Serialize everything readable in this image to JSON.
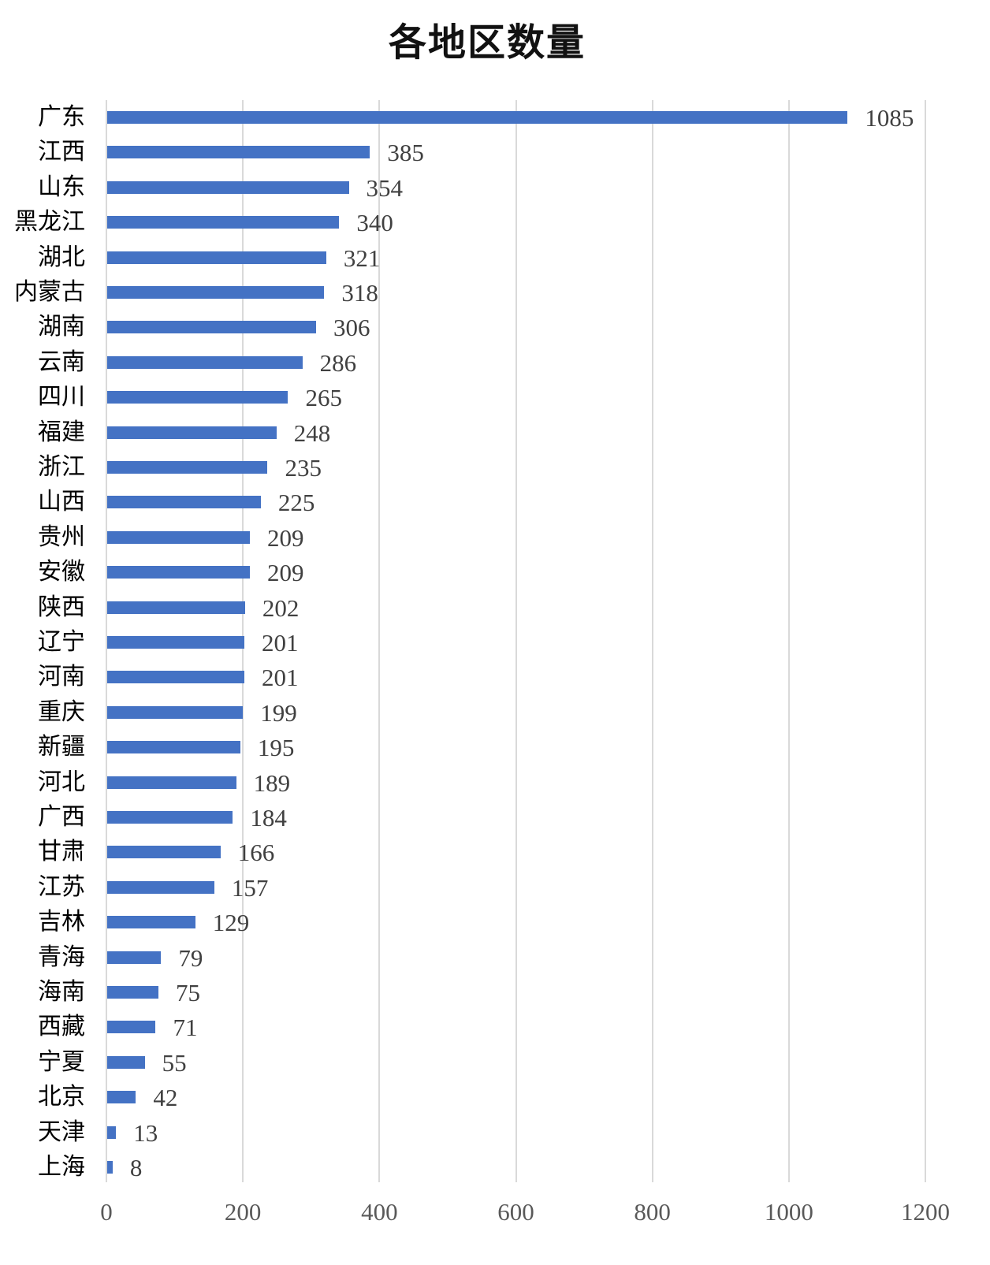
{
  "title": "各地区数量",
  "chart_data": {
    "type": "bar",
    "orientation": "horizontal",
    "title": "各地区数量",
    "xlabel": "",
    "ylabel": "",
    "xlim": [
      0,
      1200
    ],
    "x_ticks": [
      0,
      200,
      400,
      600,
      800,
      1000,
      1200
    ],
    "grid": true,
    "legend": null,
    "bar_color": "#4472C4",
    "data_labels": true,
    "categories": [
      "广东",
      "江西",
      "山东",
      "黑龙江",
      "湖北",
      "内蒙古",
      "湖南",
      "云南",
      "四川",
      "福建",
      "浙江",
      "山西",
      "贵州",
      "安徽",
      "陕西",
      "辽宁",
      "河南",
      "重庆",
      "新疆",
      "河北",
      "广西",
      "甘肃",
      "江苏",
      "吉林",
      "青海",
      "海南",
      "西藏",
      "宁夏",
      "北京",
      "天津",
      "上海"
    ],
    "values": [
      1085,
      385,
      354,
      340,
      321,
      318,
      306,
      286,
      265,
      248,
      235,
      225,
      209,
      209,
      202,
      201,
      201,
      199,
      195,
      189,
      184,
      166,
      157,
      129,
      79,
      75,
      71,
      55,
      42,
      13,
      8
    ]
  }
}
